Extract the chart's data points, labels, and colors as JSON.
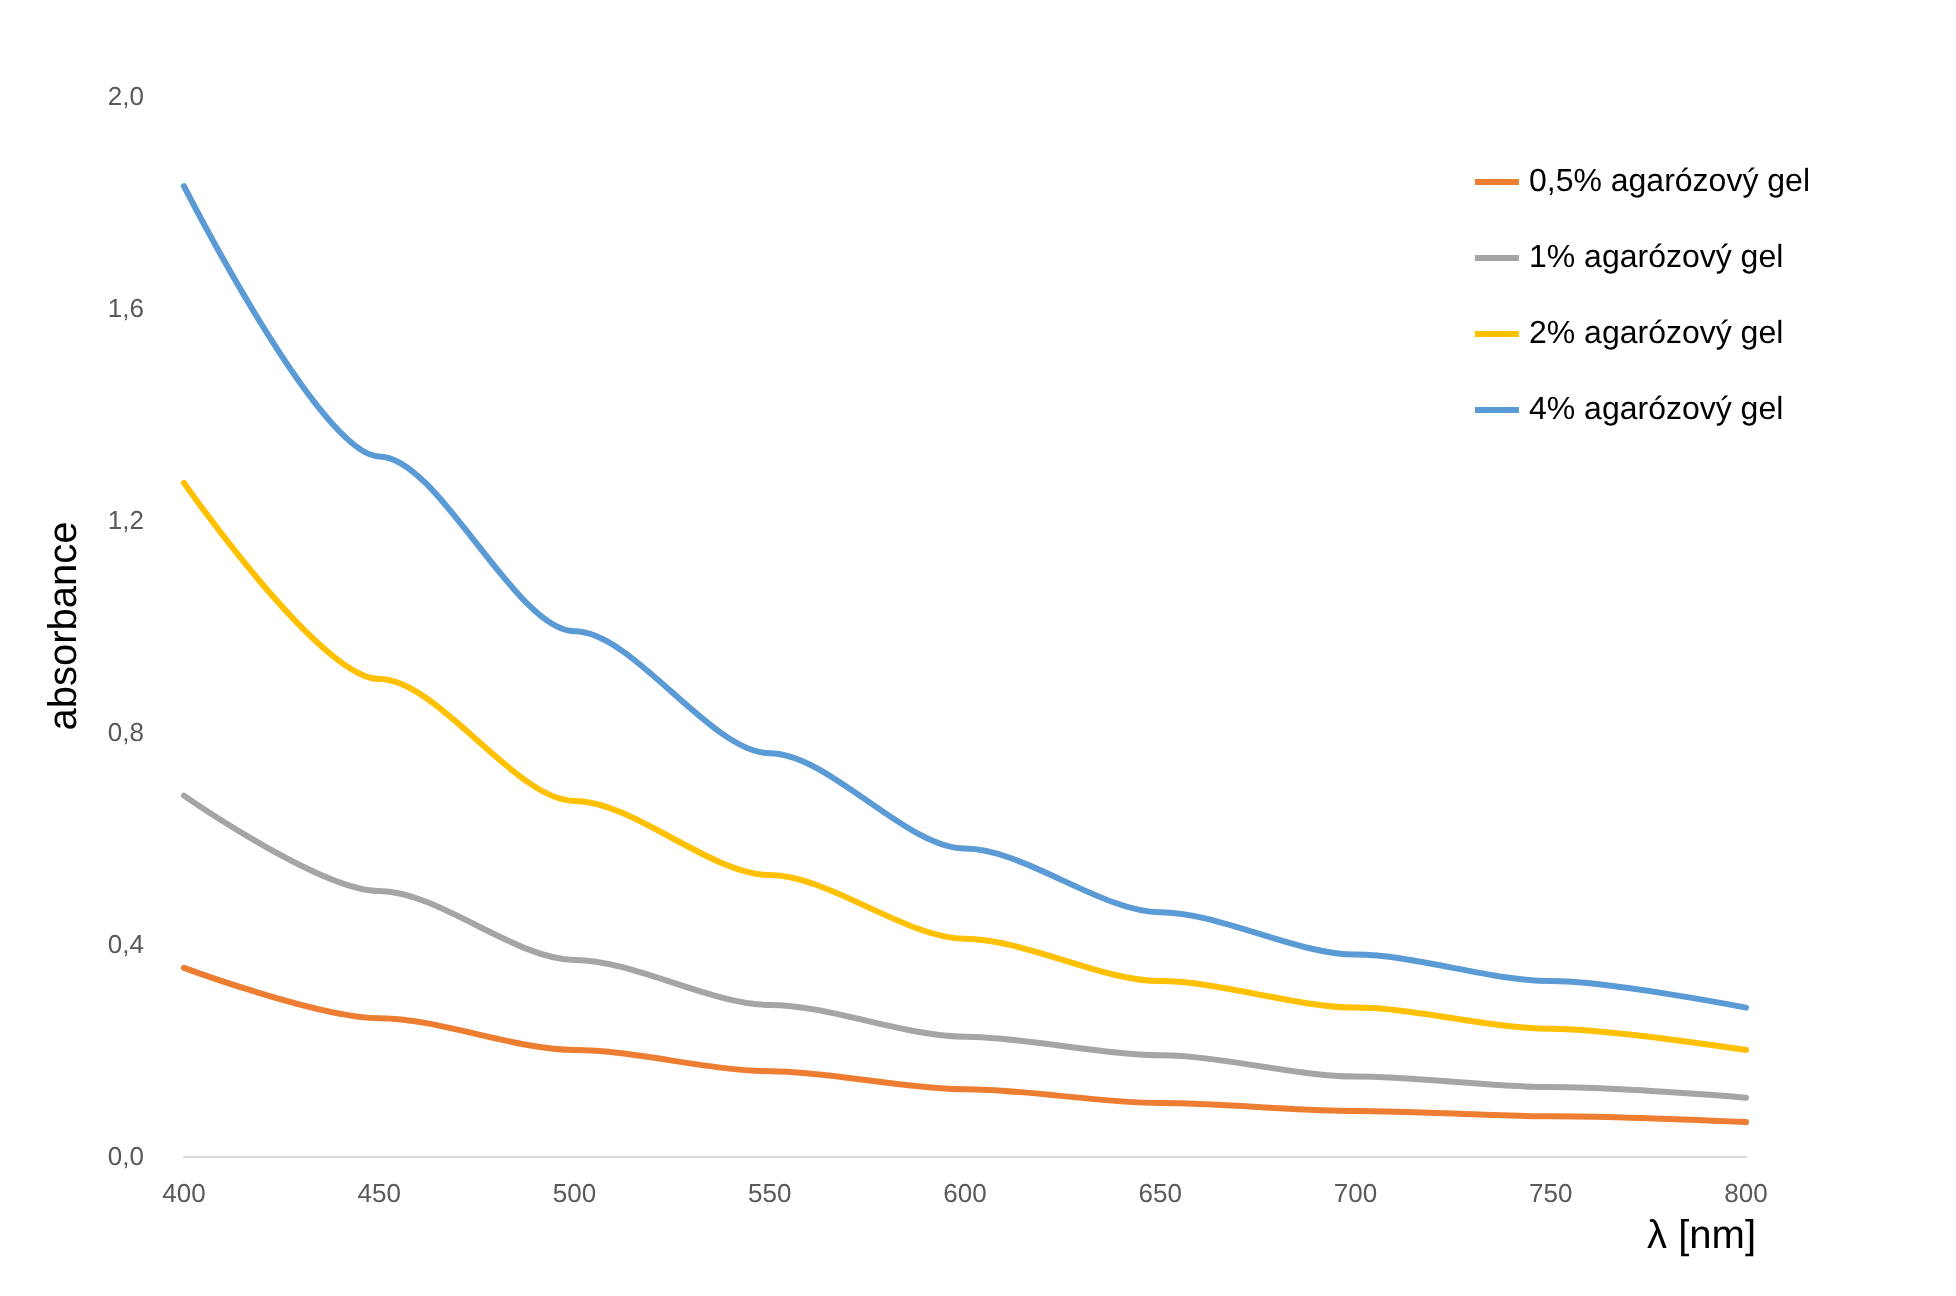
{
  "chart_data": {
    "type": "line",
    "xlabel": "λ [nm]",
    "ylabel": "absorbance",
    "x": [
      400,
      450,
      500,
      550,
      600,
      650,
      700,
      750,
      800
    ],
    "series": [
      {
        "name": "0,5% agarózový gel",
        "color": "#ed7d31",
        "values": [
          0.355,
          0.26,
          0.2,
          0.16,
          0.126,
          0.1,
          0.085,
          0.075,
          0.064
        ]
      },
      {
        "name": "1% agarózový gel",
        "color": "#a5a5a5",
        "values": [
          0.68,
          0.5,
          0.37,
          0.285,
          0.225,
          0.19,
          0.15,
          0.13,
          0.11
        ]
      },
      {
        "name": "2% agarózový gel",
        "color": "#ffc000",
        "values": [
          1.27,
          0.9,
          0.67,
          0.53,
          0.41,
          0.33,
          0.28,
          0.24,
          0.2
        ]
      },
      {
        "name": "4% agarózový gel",
        "color": "#5b9bd5",
        "values": [
          1.83,
          1.32,
          0.99,
          0.76,
          0.58,
          0.46,
          0.38,
          0.33,
          0.28
        ]
      }
    ],
    "xlim": [
      400,
      800
    ],
    "xticks": [
      400,
      450,
      500,
      550,
      600,
      650,
      700,
      750,
      800
    ],
    "ylim": [
      0,
      2
    ],
    "yticks": [
      {
        "value": 0,
        "label": "0,0"
      },
      {
        "value": 0.4,
        "label": "0,4"
      },
      {
        "value": 0.8,
        "label": "0,8"
      },
      {
        "value": 1.2,
        "label": "1,2"
      },
      {
        "value": 1.6,
        "label": "1,6"
      },
      {
        "value": 2,
        "label": "2,0"
      }
    ],
    "grid": false,
    "legend": "top right",
    "marker": "none",
    "line_style": "solid"
  }
}
